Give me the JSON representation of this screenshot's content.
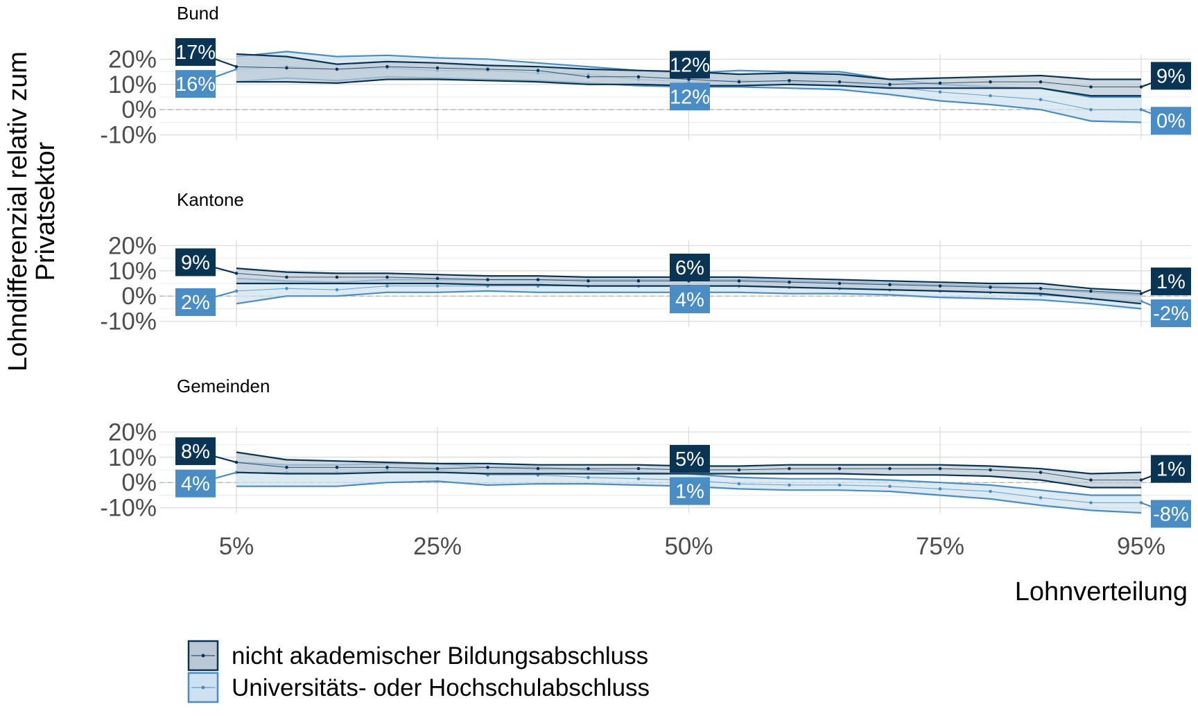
{
  "chart_data": {
    "type": "line",
    "ylabel": "Lohndifferenzial relativ zum Privatsektor",
    "xlabel": "Lohnverteilung",
    "x_ticks": [
      "5%",
      "25%",
      "50%",
      "75%",
      "95%"
    ],
    "x_tick_values": [
      5,
      25,
      50,
      75,
      95
    ],
    "y_ticks": [
      "-10%",
      "0%",
      "10%",
      "20%"
    ],
    "y_tick_values": [
      -10,
      0,
      10,
      20
    ],
    "ylim": [
      -12,
      22
    ],
    "xlim": [
      -1,
      100
    ],
    "grid": true,
    "reference_line": 0,
    "legend_position": "bottom-left",
    "x": [
      5,
      10,
      15,
      20,
      25,
      30,
      35,
      40,
      45,
      50,
      55,
      60,
      65,
      70,
      75,
      80,
      85,
      90,
      95
    ],
    "series": [
      {
        "name": "nicht akademischer Bildungsabschluss",
        "color": "#0a3453",
        "fill": "#b9c8d4"
      },
      {
        "name": "Universitäts- oder Hochschulabschluss",
        "color": "#4a8cc4",
        "fill": "#cde1f0"
      }
    ],
    "facets": [
      {
        "title": "Bund",
        "series": [
          {
            "values": [
              17,
              16.5,
              16,
              17,
              16.5,
              16,
              15.5,
              13,
              13,
              12,
              11,
              11.5,
              11,
              10,
              10.5,
              11,
              11,
              9,
              9
            ],
            "lower": [
              11,
              11,
              10.5,
              12,
              12,
              11.5,
              11,
              10,
              10,
              9.5,
              9.5,
              10,
              9.5,
              8.5,
              8.5,
              8.5,
              8.5,
              5.5,
              5.5
            ],
            "upper": [
              22,
              21,
              18,
              19,
              18.5,
              17.5,
              17,
              16,
              15.5,
              15,
              14,
              14.5,
              14,
              12,
              12.5,
              13,
              13.5,
              12,
              12
            ],
            "labels": [
              {
                "at": 5,
                "text": "17%"
              },
              {
                "at": 50,
                "text": "12%"
              },
              {
                "at": 95,
                "text": "9%"
              }
            ]
          },
          {
            "values": [
              16,
              17,
              16,
              16.5,
              15.5,
              15.5,
              14.5,
              14,
              12,
              11,
              11.5,
              11,
              11,
              9,
              7,
              5.5,
              4,
              0,
              0
            ],
            "lower": [
              11,
              12.5,
              11.5,
              13,
              12.5,
              12,
              11.5,
              10.5,
              9.5,
              9,
              9,
              8.5,
              8,
              6,
              3.5,
              2,
              0,
              -4.5,
              -5
            ],
            "upper": [
              21,
              23,
              21,
              21.5,
              20.5,
              20,
              18.5,
              17,
              15.5,
              14.5,
              15.5,
              15,
              15,
              12,
              10,
              9,
              8.5,
              5,
              5
            ],
            "labels": [
              {
                "at": 5,
                "text": "16%"
              },
              {
                "at": 50,
                "text": "12%"
              },
              {
                "at": 95,
                "text": "0%"
              }
            ]
          }
        ]
      },
      {
        "title": "Kantone",
        "series": [
          {
            "values": [
              9,
              7.5,
              7.5,
              7.5,
              7,
              6.5,
              6.5,
              6,
              6,
              6,
              6,
              5.5,
              5,
              4.5,
              4,
              3.5,
              3,
              2,
              1
            ],
            "lower": [
              5,
              5,
              5,
              5,
              5,
              4.5,
              4.5,
              4,
              4,
              4,
              4,
              3.5,
              3,
              2.5,
              2,
              1.5,
              1,
              -1,
              -3
            ],
            "upper": [
              11,
              9.5,
              9,
              9,
              8.5,
              8,
              8,
              7.5,
              7.5,
              7.5,
              7.5,
              7,
              6.5,
              6,
              5.5,
              5,
              5,
              3,
              2
            ],
            "labels": [
              {
                "at": 5,
                "text": "9%"
              },
              {
                "at": 50,
                "text": "6%"
              },
              {
                "at": 95,
                "text": "1%"
              }
            ]
          },
          {
            "values": [
              2,
              3,
              2.5,
              4,
              4,
              4,
              4,
              4,
              4,
              4,
              4,
              3.5,
              3,
              2.5,
              2,
              1.5,
              0.5,
              -1,
              -2
            ],
            "lower": [
              -3,
              0,
              0,
              1.5,
              1.5,
              2,
              1.5,
              1.5,
              1.5,
              1.5,
              1.5,
              1,
              1,
              0.5,
              -0.5,
              -1,
              -1.5,
              -3,
              -5
            ],
            "upper": [
              7,
              6,
              5.5,
              6.5,
              6.5,
              6.5,
              6.5,
              6.5,
              6.5,
              6.5,
              6.5,
              6,
              5.5,
              5,
              4.5,
              4,
              3,
              1.5,
              0.5
            ],
            "labels": [
              {
                "at": 5,
                "text": "2%"
              },
              {
                "at": 50,
                "text": "4%"
              },
              {
                "at": 95,
                "text": "-2%"
              }
            ]
          }
        ]
      },
      {
        "title": "Gemeinden",
        "series": [
          {
            "values": [
              8,
              6,
              6,
              6,
              5.5,
              6,
              5.5,
              5.5,
              5.5,
              5,
              5,
              5.5,
              5.5,
              5.5,
              5.5,
              5,
              4,
              1,
              1
            ],
            "lower": [
              4,
              3.5,
              3.5,
              4,
              4,
              3.5,
              3.5,
              3.5,
              3.5,
              3.5,
              3.5,
              3.5,
              3.5,
              3,
              3,
              2.5,
              1,
              -2,
              -2
            ],
            "upper": [
              12,
              9,
              8.5,
              8,
              7.5,
              7.5,
              7,
              7,
              7,
              6.5,
              6.5,
              7,
              7,
              7,
              7,
              6.5,
              5.5,
              3.5,
              4
            ],
            "labels": [
              {
                "at": 5,
                "text": "8%"
              },
              {
                "at": 50,
                "text": "5%"
              },
              {
                "at": 95,
                "text": "1%"
              }
            ]
          },
          {
            "values": [
              4,
              4,
              4,
              5,
              5,
              3,
              3,
              2,
              1.5,
              1,
              -0.5,
              -1,
              -1,
              -1.5,
              -2.5,
              -3.5,
              -6,
              -8,
              -8
            ],
            "lower": [
              -1.5,
              -1.5,
              -1.5,
              0,
              0.5,
              -1,
              -0.5,
              -0.5,
              -1,
              -1.5,
              -2.5,
              -3,
              -3,
              -3.5,
              -5,
              -6.5,
              -9,
              -11,
              -12
            ],
            "upper": [
              8,
              7,
              7,
              7.5,
              7.5,
              6,
              6,
              5,
              4,
              3.5,
              2,
              1.5,
              1.5,
              1,
              0,
              -1,
              -3,
              -5,
              -5
            ],
            "labels": [
              {
                "at": 5,
                "text": "4%"
              },
              {
                "at": 50,
                "text": "1%"
              },
              {
                "at": 95,
                "text": "-8%"
              }
            ]
          }
        ]
      }
    ]
  }
}
